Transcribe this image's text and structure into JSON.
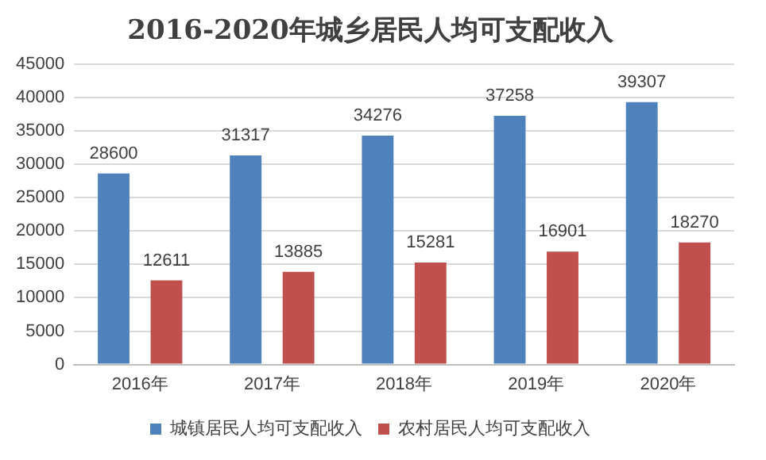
{
  "chart_data": {
    "type": "bar",
    "title": "2016-2020年城乡居民人均可支配收入",
    "categories": [
      "2016年",
      "2017年",
      "2018年",
      "2019年",
      "2020年"
    ],
    "series": [
      {
        "name": "城镇居民人均可支配收入",
        "color": "#4f81bd",
        "values": [
          28600,
          31317,
          34276,
          37258,
          39307
        ]
      },
      {
        "name": "农村居民人均可支配收入",
        "color": "#c0504d",
        "values": [
          12611,
          13885,
          15281,
          16901,
          18270
        ]
      }
    ],
    "ylim": [
      0,
      45000
    ],
    "yticks": [
      0,
      5000,
      10000,
      15000,
      20000,
      25000,
      30000,
      35000,
      40000,
      45000
    ],
    "grid": "y",
    "legend": "bottom",
    "data_labels": true
  }
}
